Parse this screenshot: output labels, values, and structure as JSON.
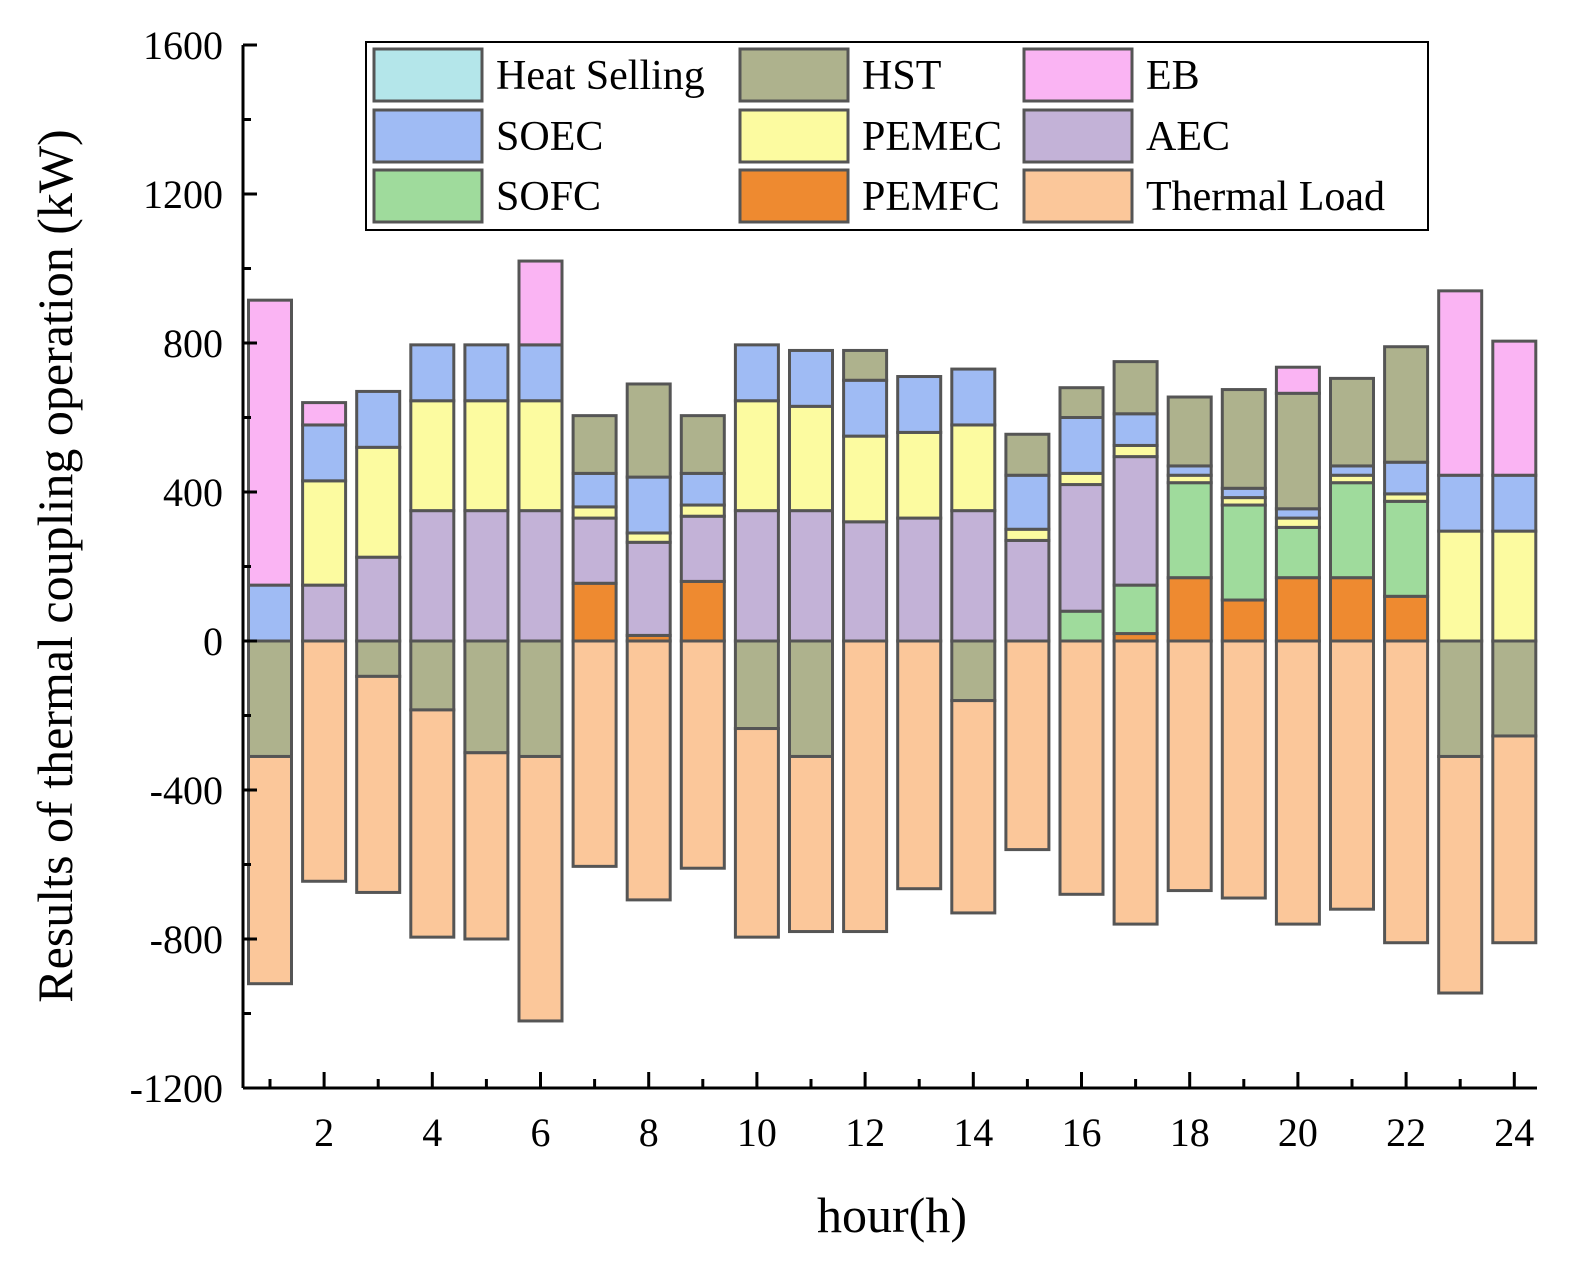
{
  "chart_data": {
    "type": "bar",
    "stacked": true,
    "title": "",
    "xlabel": "hour(h)",
    "ylabel": "Results of  thermal coupling operation (kW)",
    "ylim": [
      -1200,
      1600
    ],
    "yticks": [
      "-1200",
      "-800",
      "-400",
      "0",
      "400",
      "800",
      "1200",
      "1600"
    ],
    "ytick_values": [
      -1200,
      -800,
      -400,
      0,
      400,
      800,
      1200,
      1600
    ],
    "xticks": [
      "2",
      "4",
      "6",
      "8",
      "10",
      "12",
      "14",
      "16",
      "18",
      "20",
      "22",
      "24"
    ],
    "xtick_values": [
      2,
      4,
      6,
      8,
      10,
      12,
      14,
      16,
      18,
      20,
      22,
      24
    ],
    "categories": [
      1,
      2,
      3,
      4,
      5,
      6,
      7,
      8,
      9,
      10,
      11,
      12,
      13,
      14,
      15,
      16,
      17,
      18,
      19,
      20,
      21,
      22,
      23,
      24
    ],
    "legend_position": "top",
    "series": [
      {
        "name": "Heat Selling",
        "color": "#b4e6ea",
        "values": [
          0,
          0,
          0,
          0,
          0,
          0,
          0,
          0,
          0,
          0,
          0,
          0,
          0,
          0,
          0,
          0,
          0,
          0,
          0,
          0,
          0,
          0,
          0,
          0
        ]
      },
      {
        "name": "HST",
        "color": "#aeb28d",
        "values": [
          -310,
          0,
          -95,
          -185,
          -300,
          -310,
          155,
          250,
          155,
          -235,
          -310,
          80,
          0,
          -160,
          110,
          80,
          140,
          185,
          265,
          310,
          235,
          310,
          -310,
          -255
        ]
      },
      {
        "name": "EB",
        "color": "#fab4f3",
        "values": [
          765,
          60,
          0,
          0,
          0,
          225,
          0,
          0,
          0,
          0,
          0,
          0,
          0,
          0,
          0,
          0,
          0,
          0,
          0,
          70,
          0,
          0,
          495,
          360
        ]
      },
      {
        "name": "SOEC",
        "color": "#9fbbf4",
        "values": [
          150,
          150,
          150,
          150,
          150,
          150,
          90,
          150,
          85,
          150,
          150,
          150,
          150,
          150,
          145,
          150,
          85,
          25,
          25,
          25,
          25,
          85,
          150,
          150
        ]
      },
      {
        "name": "PEMEC",
        "color": "#fcfba0",
        "values": [
          0,
          280,
          295,
          295,
          295,
          295,
          30,
          25,
          30,
          295,
          280,
          230,
          230,
          230,
          30,
          30,
          30,
          20,
          20,
          25,
          20,
          20,
          295,
          295
        ]
      },
      {
        "name": "AEC",
        "color": "#c3b2d7",
        "values": [
          0,
          150,
          225,
          350,
          350,
          350,
          175,
          250,
          175,
          350,
          350,
          320,
          330,
          350,
          270,
          340,
          345,
          0,
          0,
          0,
          0,
          0,
          0,
          0
        ]
      },
      {
        "name": "SOFC",
        "color": "#9fdb9c",
        "values": [
          0,
          0,
          0,
          0,
          0,
          0,
          0,
          0,
          0,
          0,
          0,
          0,
          0,
          0,
          0,
          80,
          130,
          255,
          255,
          135,
          255,
          255,
          0,
          0
        ]
      },
      {
        "name": "PEMFC",
        "color": "#ee8a30",
        "values": [
          0,
          0,
          0,
          0,
          0,
          0,
          155,
          15,
          160,
          0,
          0,
          0,
          0,
          0,
          0,
          0,
          20,
          170,
          110,
          170,
          170,
          120,
          0,
          0
        ]
      },
      {
        "name": "Thermal Load",
        "color": "#fbc79a",
        "values": [
          -610,
          -645,
          -580,
          -610,
          -500,
          -710,
          -605,
          -695,
          -610,
          -560,
          -470,
          -780,
          -665,
          -570,
          -560,
          -680,
          -760,
          -670,
          -690,
          -760,
          -720,
          -810,
          -635,
          -555
        ]
      }
    ]
  }
}
